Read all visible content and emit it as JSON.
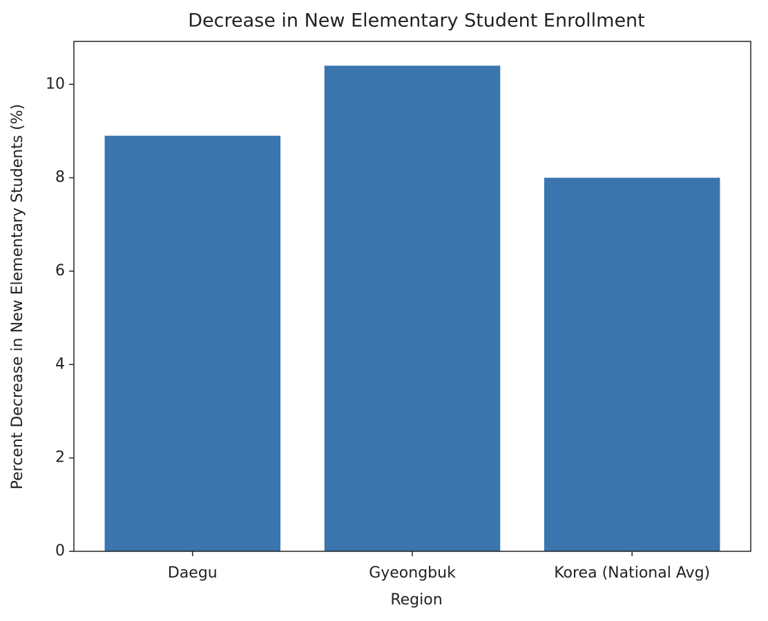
{
  "chart_data": {
    "type": "bar",
    "title": "Decrease in New Elementary Student Enrollment",
    "x_label": "Region",
    "y_label": "Percent Decrease in New Elementary Students (%)",
    "categories": [
      "Daegu",
      "Gyeongbuk",
      "Korea (National Avg)"
    ],
    "values": [
      8.9,
      10.4,
      8.0
    ],
    "color": "#3a75ae",
    "ylim": [
      0,
      10.92
    ],
    "yticks": [
      0,
      2,
      4,
      6,
      8,
      10
    ],
    "grid": false
  }
}
